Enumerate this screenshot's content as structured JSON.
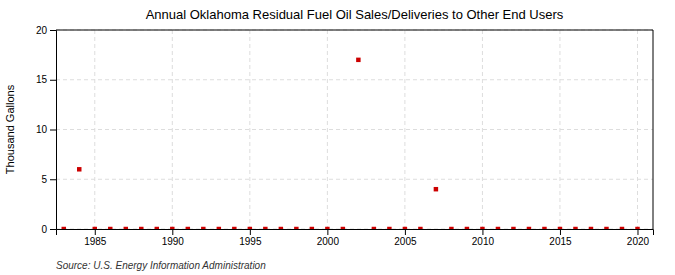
{
  "chart_data": {
    "type": "scatter",
    "title": "Annual Oklahoma Residual Fuel Oil Sales/Deliveries to Other End Users",
    "ylabel": "Thousand Gallons",
    "source": "Source: U.S. Energy Information Administration",
    "x": [
      1983,
      1984,
      1985,
      1986,
      1987,
      1988,
      1989,
      1990,
      1991,
      1992,
      1993,
      1994,
      1995,
      1996,
      1997,
      1998,
      1999,
      2000,
      2001,
      2002,
      2003,
      2004,
      2005,
      2006,
      2007,
      2008,
      2009,
      2010,
      2011,
      2012,
      2013,
      2014,
      2015,
      2016,
      2017,
      2018,
      2019,
      2020
    ],
    "values": [
      0,
      6.0,
      0,
      0,
      0,
      0,
      0,
      0,
      0,
      0,
      0,
      0,
      0,
      0,
      0,
      0,
      0,
      0,
      0,
      17.0,
      0,
      0,
      0,
      0,
      4.0,
      0,
      0,
      0,
      0,
      0,
      0,
      0,
      0,
      0,
      0,
      0,
      0,
      0
    ],
    "color": "#cc0000",
    "marker": "square",
    "xlim": [
      1982.5,
      2021
    ],
    "ylim": [
      0,
      20
    ],
    "xticks": [
      1985,
      1990,
      1995,
      2000,
      2005,
      2010,
      2015,
      2020
    ],
    "yticks": [
      0,
      5,
      10,
      15,
      20
    ],
    "grid": true
  }
}
